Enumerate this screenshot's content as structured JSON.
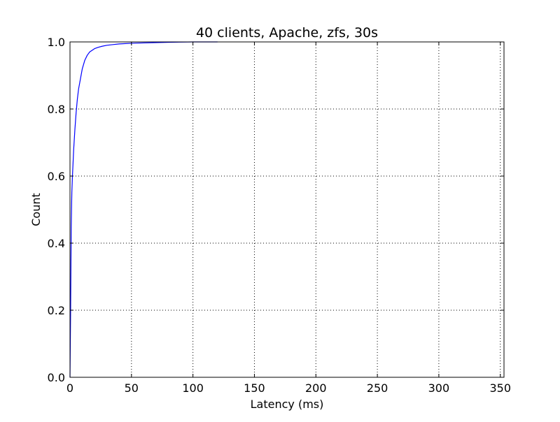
{
  "chart_data": {
    "type": "line",
    "title": "40 clients, Apache, zfs, 30s",
    "xlabel": "Latency (ms)",
    "ylabel": "Count",
    "xlim": [
      0,
      353
    ],
    "ylim": [
      0,
      1.0
    ],
    "xticks": [
      0,
      50,
      100,
      150,
      200,
      250,
      300,
      350
    ],
    "xtick_labels": [
      "0",
      "50",
      "100",
      "150",
      "200",
      "250",
      "300",
      "350"
    ],
    "yticks": [
      0.0,
      0.2,
      0.4,
      0.6,
      0.8,
      1.0
    ],
    "ytick_labels": [
      "0.0",
      "0.2",
      "0.4",
      "0.6",
      "0.8",
      "1.0"
    ],
    "grid": true,
    "colors": {
      "series": "#0000ff"
    },
    "series": [
      {
        "x": [
          0,
          0.5,
          1,
          1.5,
          2,
          3,
          4,
          5,
          6,
          7,
          8,
          10,
          12,
          14,
          16,
          18,
          20,
          23,
          26,
          30,
          35,
          40,
          50,
          60,
          80,
          100,
          120
        ],
        "y": [
          0.0,
          0.2,
          0.45,
          0.55,
          0.6,
          0.68,
          0.74,
          0.79,
          0.83,
          0.86,
          0.88,
          0.92,
          0.945,
          0.96,
          0.97,
          0.975,
          0.98,
          0.984,
          0.987,
          0.99,
          0.992,
          0.994,
          0.996,
          0.997,
          0.999,
          1.0,
          1.0
        ]
      }
    ]
  }
}
